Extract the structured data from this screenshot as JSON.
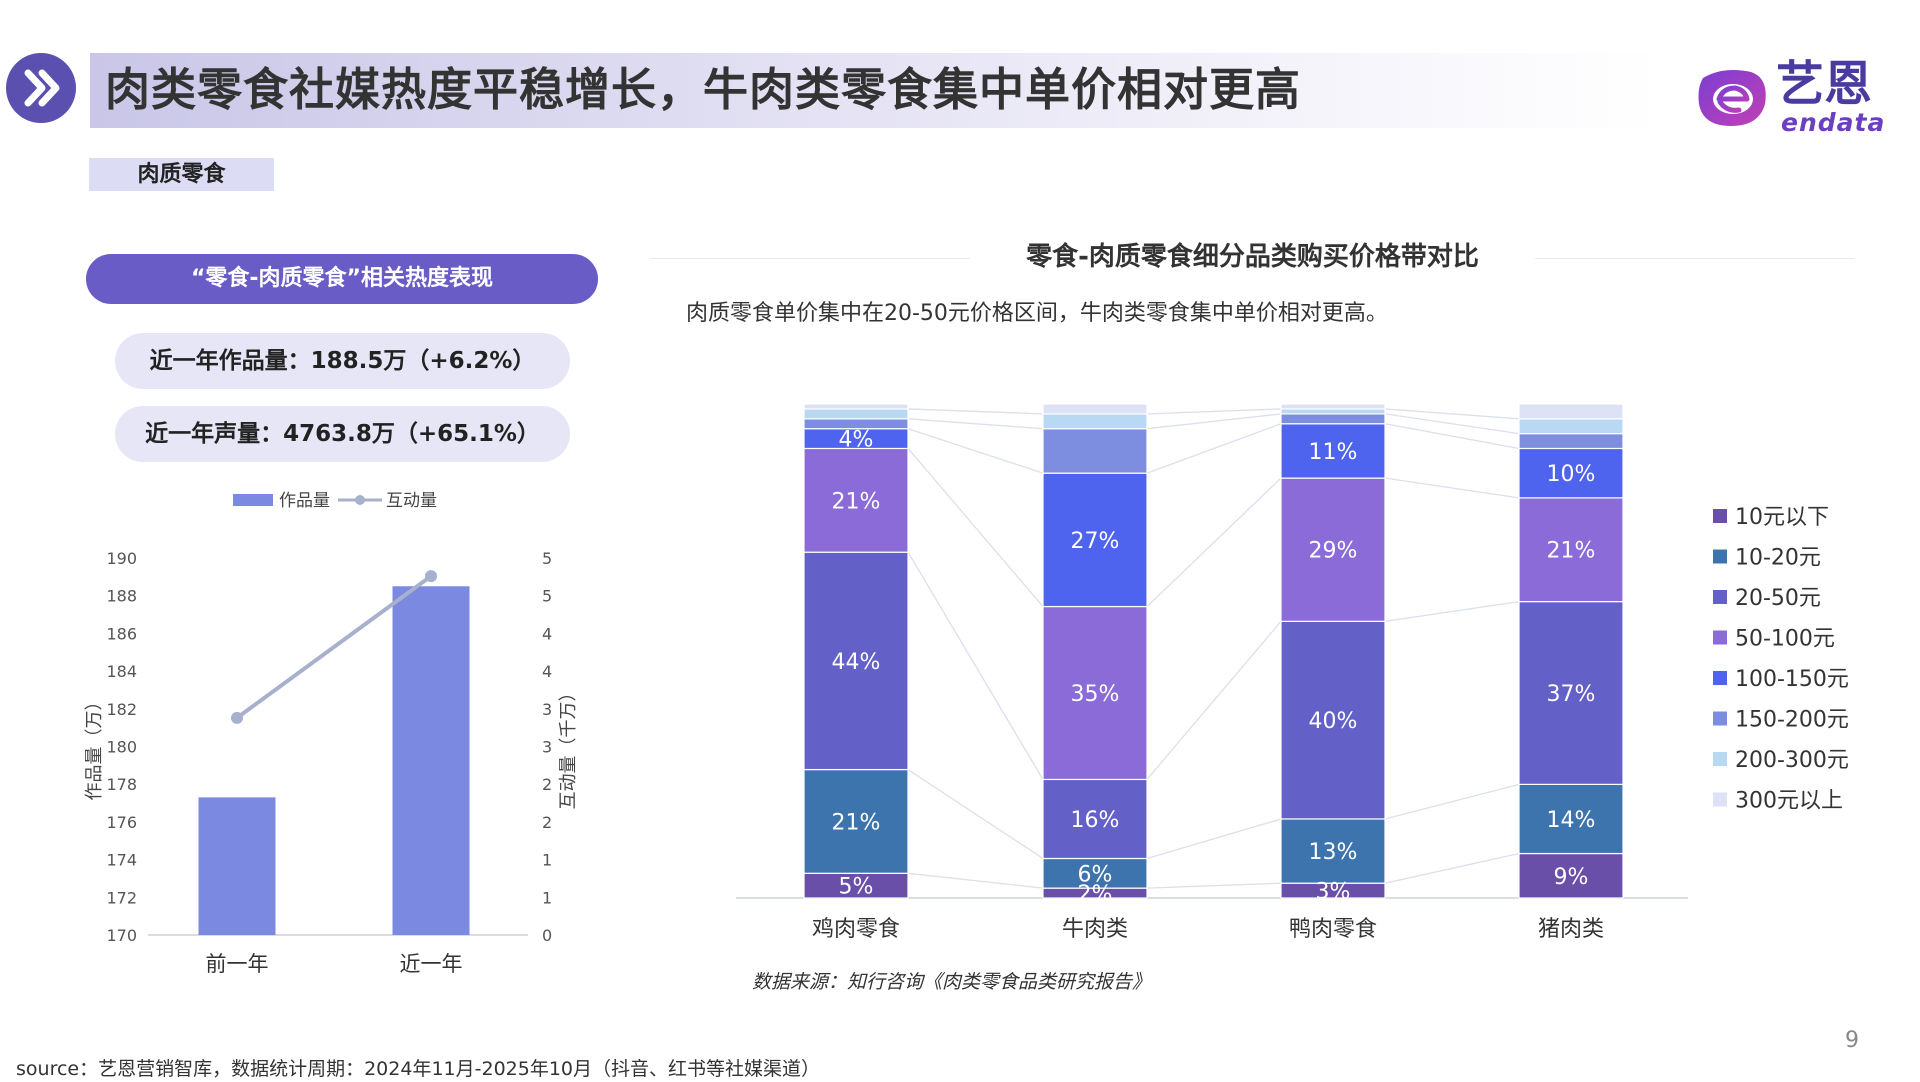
{
  "header": {
    "title": "肉类零食社媒热度平稳增长，牛肉类零食集中单价相对更高",
    "logo_cn": "艺恩",
    "logo_en": "endata",
    "section_tag": "肉质零食",
    "chevron_icon": "double-chevron-right-icon"
  },
  "left_panel": {
    "header": "“零食-肉质零食”相关热度表现",
    "stat_works": "近一年作品量：188.5万（+6.2%）",
    "stat_voice": "近一年声量：4763.8万（+65.1%）"
  },
  "right_panel": {
    "title": "零食-肉质零食细分品类购买价格带对比",
    "subtitle": "肉质零食单价集中在20-50元价格区间，牛肉类零食集中单价相对更高。",
    "data_source": "数据来源：知行咨询《肉类零食品类研究报告》"
  },
  "footer": {
    "page_number": "9",
    "source": "source：艺恩营销智库，数据统计周期：2024年11月-2025年10月（抖音、红书等社媒渠道）"
  },
  "colors": {
    "accent": "#6a5cc7",
    "bar": "#7b89e0",
    "line": "#a7b0cc"
  },
  "chart_data": [
    {
      "type": "bar",
      "legend": [
        "作品量",
        "互动量"
      ],
      "categories": [
        "前一年",
        "近一年"
      ],
      "series": [
        {
          "name": "作品量",
          "type": "bar",
          "axis": "left",
          "values": [
            177.3,
            188.5
          ]
        },
        {
          "name": "互动量",
          "type": "line",
          "axis": "right",
          "values": [
            2.88,
            4.76
          ]
        }
      ],
      "ylabel": "作品量（万）",
      "y2label": "互动量（千万）",
      "ylim": [
        170,
        190
      ],
      "y2lim": [
        0,
        5
      ],
      "yticks": [
        "170",
        "172",
        "174",
        "176",
        "178",
        "180",
        "182",
        "184",
        "186",
        "188",
        "190"
      ],
      "y2ticks": [
        "0",
        "1",
        "1",
        "2",
        "2",
        "3",
        "3",
        "4",
        "4",
        "5",
        "5"
      ],
      "legend_position": "top"
    },
    {
      "type": "bar",
      "stacked": true,
      "categories": [
        "鸡肉零食",
        "牛肉类",
        "鸭肉零食",
        "猪肉类"
      ],
      "series": [
        {
          "name": "10元以下",
          "color": "#6a4fa8",
          "values": [
            5,
            2,
            3,
            9
          ]
        },
        {
          "name": "10-20元",
          "color": "#3d74ad",
          "values": [
            21,
            6,
            13,
            14
          ]
        },
        {
          "name": "20-50元",
          "color": "#6360c8",
          "values": [
            44,
            16,
            40,
            37
          ]
        },
        {
          "name": "50-100元",
          "color": "#8a6bd8",
          "values": [
            21,
            35,
            29,
            21
          ]
        },
        {
          "name": "100-150元",
          "color": "#4e63ee",
          "values": [
            4,
            27,
            11,
            10
          ]
        },
        {
          "name": "150-200元",
          "color": "#7d8ee0",
          "values": [
            2,
            9,
            2,
            3
          ]
        },
        {
          "name": "200-300元",
          "color": "#b8d8f4",
          "values": [
            2,
            3,
            1,
            3
          ]
        },
        {
          "name": "300元以上",
          "color": "#dde2f6",
          "values": [
            1,
            2,
            1,
            3
          ]
        }
      ],
      "value_labels": [
        [
          "5%",
          "",
          "",
          "",
          "",
          "",
          "",
          ""
        ],
        [
          "2%",
          "6%",
          "16%",
          "35%",
          "27%",
          "",
          "",
          ""
        ],
        [
          "3%",
          "13%",
          "40%",
          "29%",
          "11%",
          "",
          "",
          ""
        ],
        [
          "9%",
          "14%",
          "37%",
          "21%",
          "10%",
          "",
          "",
          ""
        ]
      ],
      "value_labels_first": [
        "5%",
        "21%",
        "44%",
        "21%",
        "4%",
        "",
        "",
        ""
      ],
      "ylim": [
        0,
        100
      ],
      "legend_position": "right"
    }
  ]
}
